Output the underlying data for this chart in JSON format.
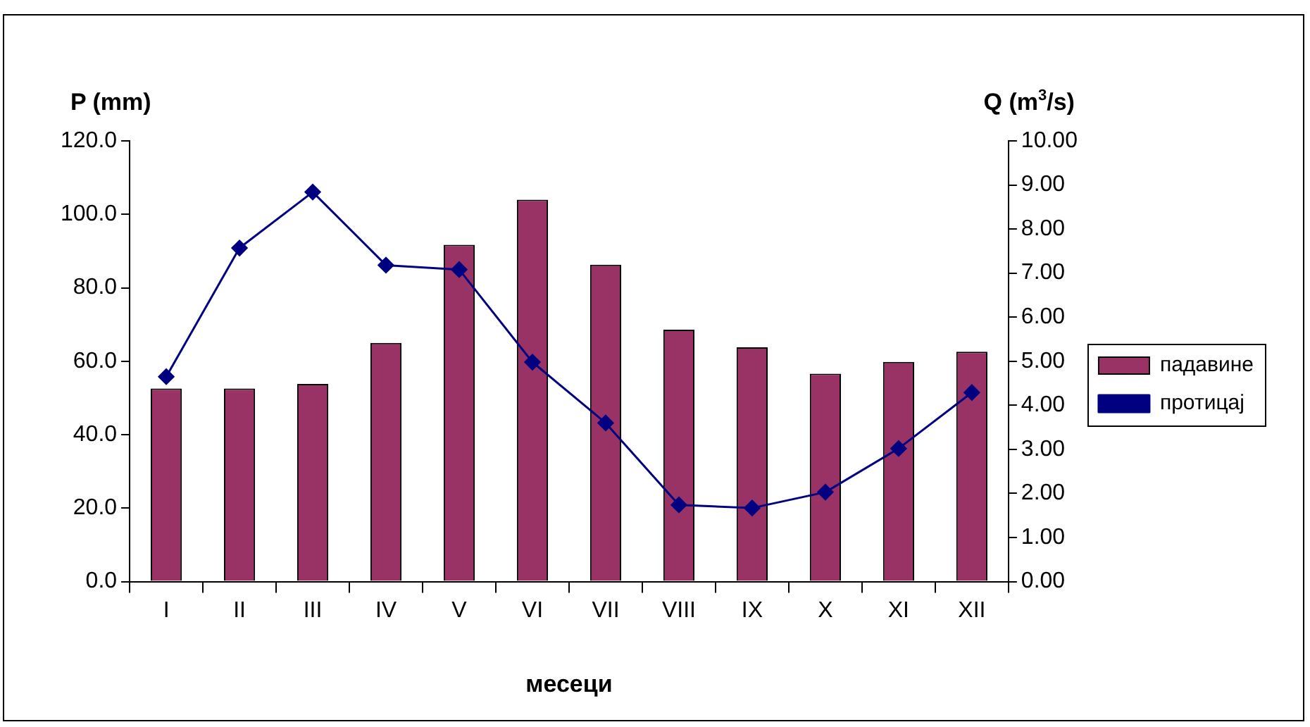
{
  "chart_data": {
    "type": "bar",
    "xlabel": "месеци",
    "ylabel": "P (mm)",
    "y2label": "Q (m$^{3}$/s)",
    "categories": [
      "I",
      "II",
      "III",
      "IV",
      "V",
      "VI",
      "VII",
      "VIII",
      "IX",
      "X",
      "XI",
      "XII"
    ],
    "series": [
      {
        "name": "падавине",
        "color": "#993366",
        "values": [
          52.6,
          52.6,
          53.8,
          65.0,
          91.7,
          104.0,
          86.3,
          68.6,
          63.8,
          56.6,
          59.8,
          62.6
        ]
      },
      {
        "name": "протицај",
        "type": "line",
        "axis": "y2",
        "color": "#000080",
        "values": [
          4.65,
          7.57,
          8.84,
          7.18,
          7.08,
          4.98,
          3.6,
          1.74,
          1.67,
          2.03,
          3.02,
          4.29
        ]
      }
    ],
    "ylim": [
      0,
      120
    ],
    "yticks": [
      {
        "value": 0,
        "label": "0.0"
      },
      {
        "value": 20,
        "label": "20.0"
      },
      {
        "value": 40,
        "label": "40.0"
      },
      {
        "value": 60,
        "label": "60.0"
      },
      {
        "value": 80,
        "label": "80.0"
      },
      {
        "value": 100,
        "label": "100.0"
      },
      {
        "value": 120,
        "label": "120.0"
      }
    ],
    "y2lim": [
      0,
      10
    ],
    "y2ticks": [
      {
        "value": 0,
        "label": "0.00"
      },
      {
        "value": 1,
        "label": "1.00"
      },
      {
        "value": 2,
        "label": "2.00"
      },
      {
        "value": 3,
        "label": "3.00"
      },
      {
        "value": 4,
        "label": "4.00"
      },
      {
        "value": 5,
        "label": "5.00"
      },
      {
        "value": 6,
        "label": "6.00"
      },
      {
        "value": 7,
        "label": "7.00"
      },
      {
        "value": 8,
        "label": "8.00"
      },
      {
        "value": 9,
        "label": "9.00"
      },
      {
        "value": 10,
        "label": "10.00"
      }
    ],
    "grid": false,
    "legend": "right",
    "marker": "diamond",
    "line_style": "solid"
  }
}
